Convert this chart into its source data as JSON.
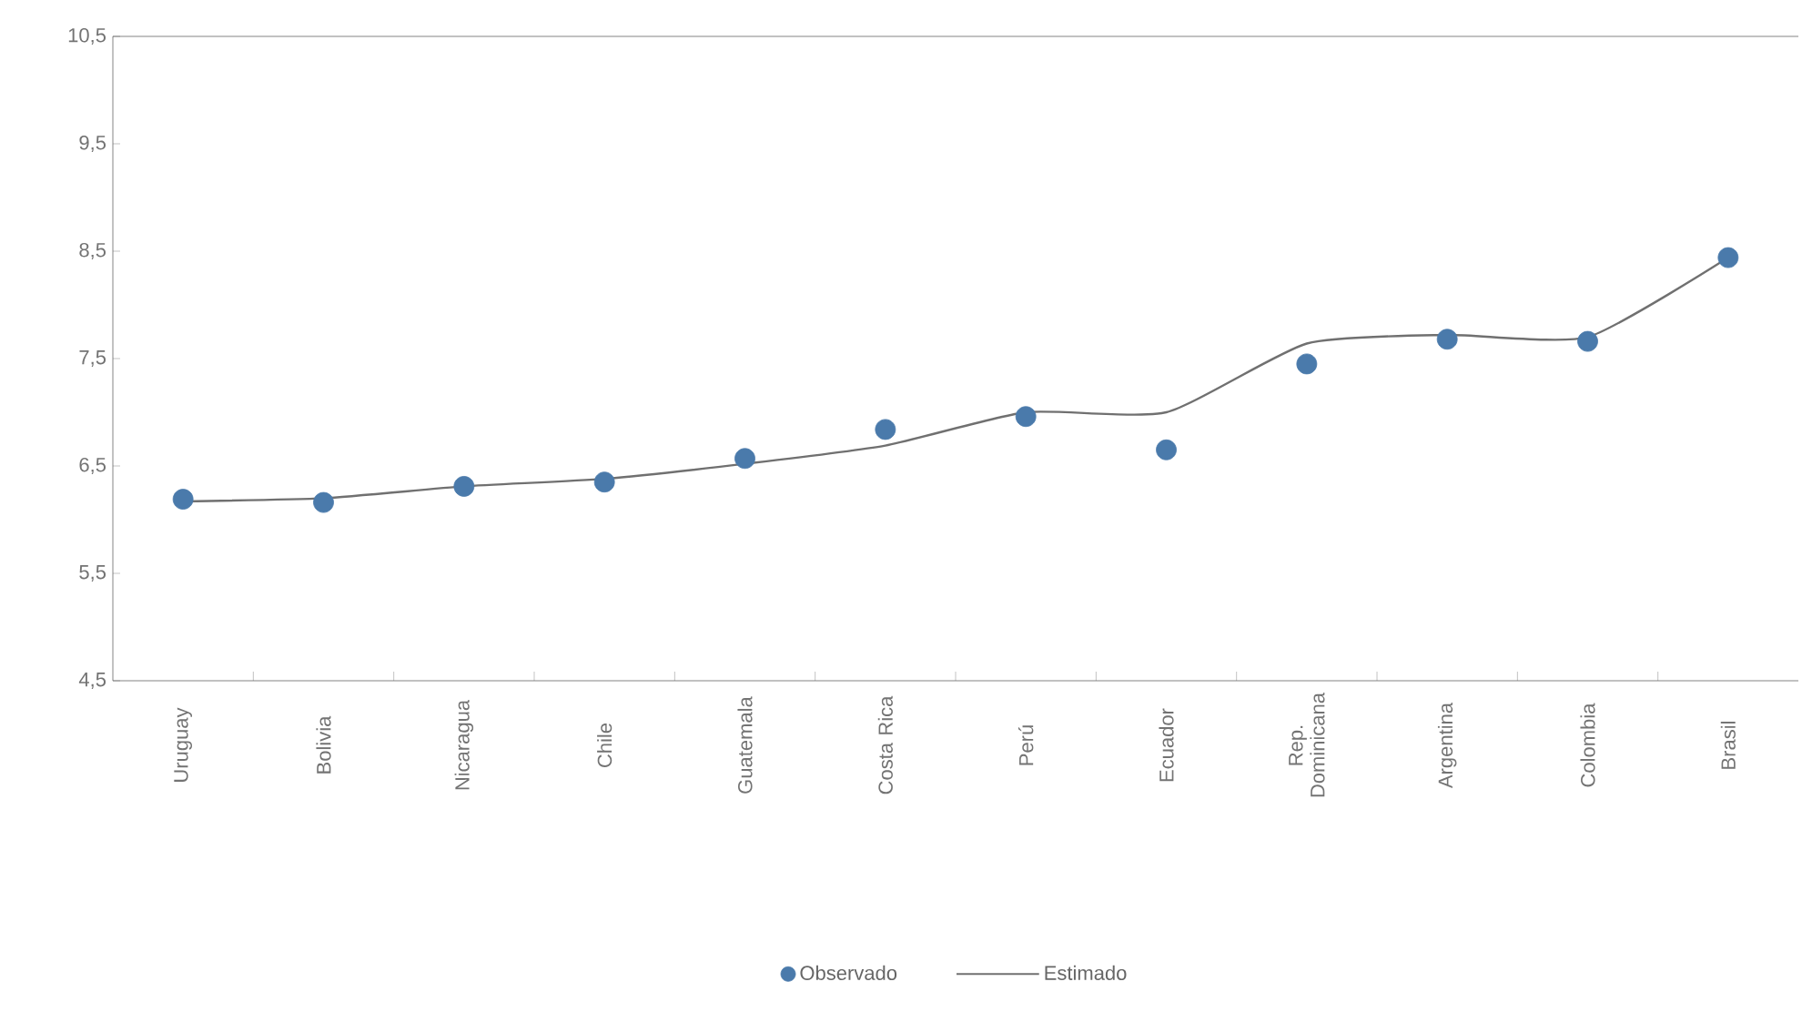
{
  "chart_data": {
    "type": "scatter",
    "categories": [
      "Uruguay",
      "Bolivia",
      "Nicaragua",
      "Chile",
      "Guatemala",
      "Costa Rica",
      "Perú",
      "Ecuador",
      "Rep. Dominicana",
      "Argentina",
      "Colombia",
      "Brasil"
    ],
    "series": [
      {
        "name": "Observado",
        "color": "#4a7aab",
        "marker": "circle",
        "values": [
          6.19,
          6.16,
          6.31,
          6.35,
          6.57,
          6.84,
          6.96,
          6.65,
          7.45,
          7.68,
          7.66,
          8.44
        ]
      },
      {
        "name": "Estimado",
        "type": "line",
        "color": "#707070",
        "marker": "none",
        "line_style": "solid",
        "values": [
          6.17,
          6.2,
          6.31,
          6.38,
          6.52,
          6.69,
          7.0,
          7.0,
          7.64,
          7.72,
          7.7,
          8.44
        ]
      }
    ],
    "ylim": [
      4.5,
      10.5
    ],
    "yticks": [
      {
        "value": 4.5,
        "label": "4,5"
      },
      {
        "value": 5.5,
        "label": "5,5"
      },
      {
        "value": 6.5,
        "label": "6,5"
      },
      {
        "value": 7.5,
        "label": "7,5"
      },
      {
        "value": 8.5,
        "label": "8,5"
      },
      {
        "value": 9.5,
        "label": "9,5"
      },
      {
        "value": 10.5,
        "label": "10,5"
      }
    ],
    "grid": false,
    "legend": "bottom"
  }
}
